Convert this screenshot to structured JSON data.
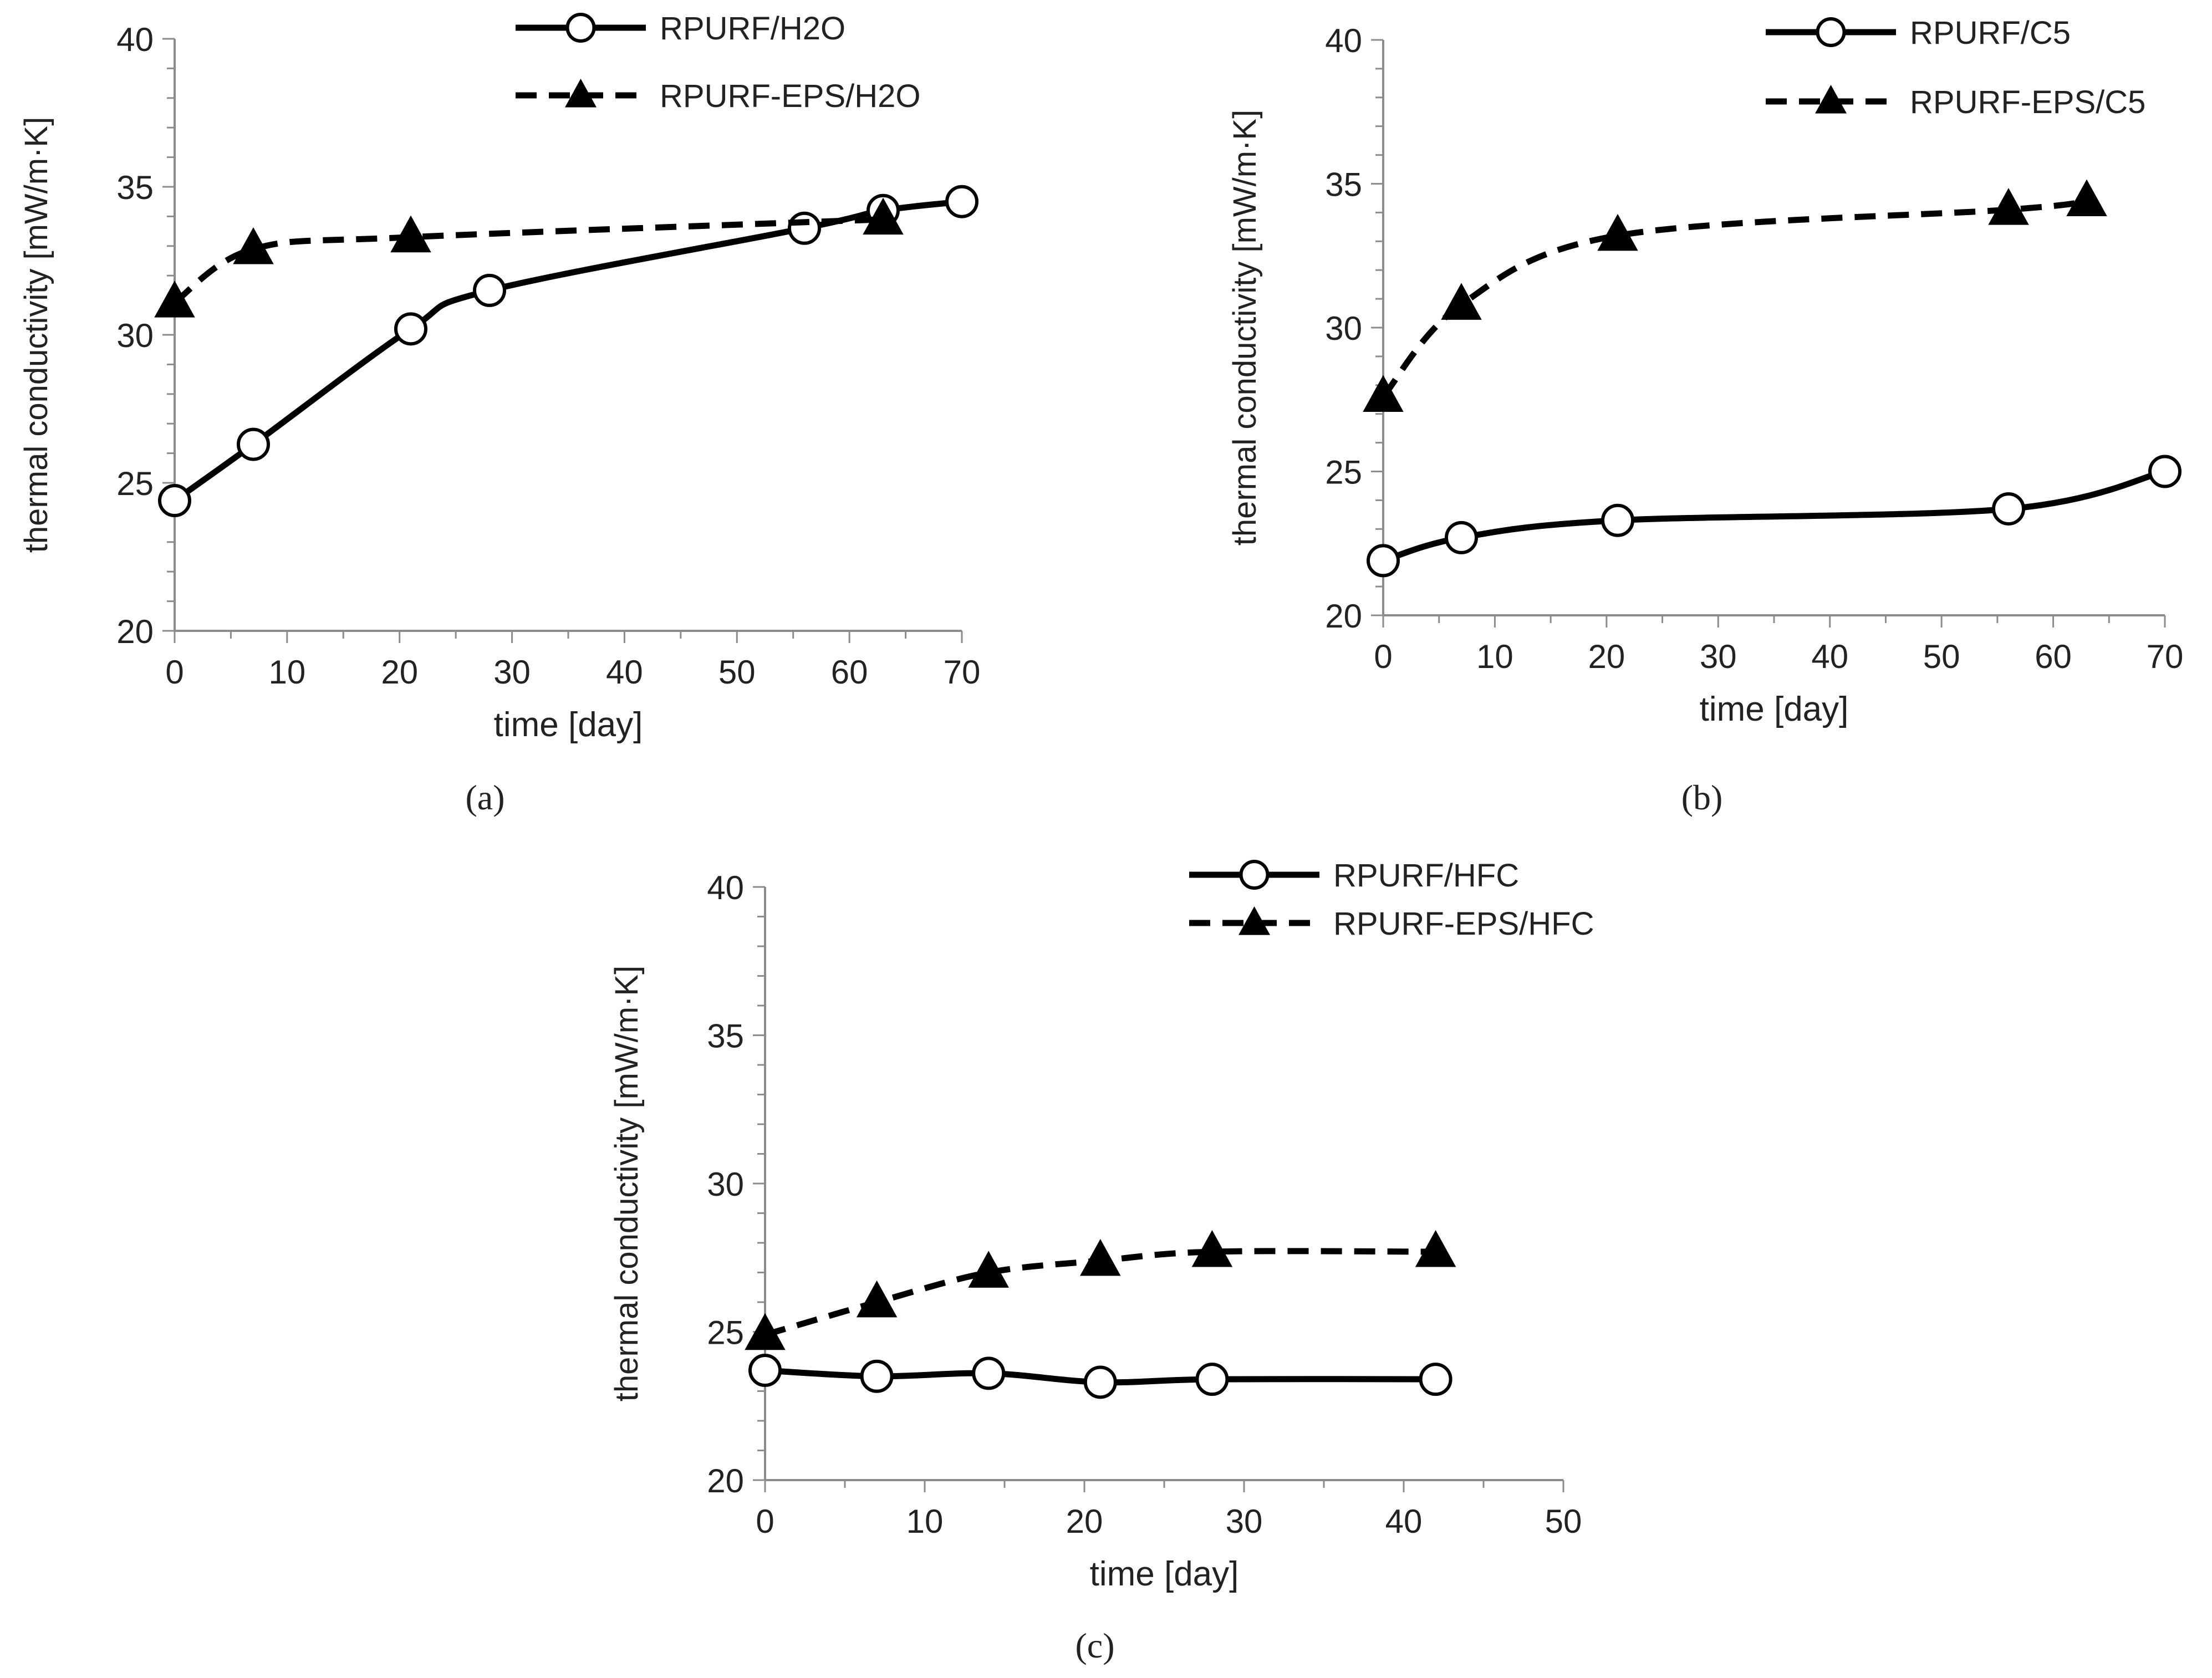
{
  "chart_data": [
    {
      "type": "line",
      "panel_label": "(a)",
      "xlabel": "time  [day]",
      "ylabel": "thermal conductivity [mW/m·K]",
      "xlim": [
        0,
        70
      ],
      "ylim": [
        20,
        40
      ],
      "xticks": [
        0,
        10,
        20,
        30,
        40,
        50,
        60,
        70
      ],
      "yticks": [
        20,
        25,
        30,
        35,
        40
      ],
      "legend_position": "top-center",
      "series": [
        {
          "name": "RPURF/H2O",
          "style": "solid",
          "marker": "open-circle",
          "x": [
            0,
            7,
            21,
            28,
            56,
            63,
            70
          ],
          "y": [
            24.4,
            26.3,
            30.2,
            31.5,
            33.6,
            34.2,
            34.5
          ]
        },
        {
          "name": "RPURF-EPS/H2O",
          "style": "dashed",
          "marker": "filled-triangle",
          "x": [
            0,
            7,
            21,
            63
          ],
          "y": [
            31.1,
            32.9,
            33.3,
            33.9
          ]
        }
      ]
    },
    {
      "type": "line",
      "panel_label": "(b)",
      "xlabel": "time  [day]",
      "ylabel": "thermal conductivity [mW/m·K]",
      "xlim": [
        0,
        70
      ],
      "ylim": [
        20,
        40
      ],
      "xticks": [
        0,
        10,
        20,
        30,
        40,
        50,
        60,
        70
      ],
      "yticks": [
        20,
        25,
        30,
        35,
        40
      ],
      "legend_position": "top-right",
      "series": [
        {
          "name": "RPURF/C5",
          "style": "solid",
          "marker": "open-circle",
          "x": [
            0,
            7,
            21,
            56,
            70
          ],
          "y": [
            21.9,
            22.7,
            23.3,
            23.7,
            25.0
          ]
        },
        {
          "name": "RPURF-EPS/C5",
          "style": "dashed",
          "marker": "filled-triangle",
          "x": [
            0,
            7,
            21,
            56,
            63
          ],
          "y": [
            27.6,
            30.8,
            33.2,
            34.1,
            34.4
          ]
        }
      ]
    },
    {
      "type": "line",
      "panel_label": "(c)",
      "xlabel": "time  [day]",
      "ylabel": "thermal conductivity [mW/m·K]",
      "xlim": [
        0,
        50
      ],
      "ylim": [
        20,
        40
      ],
      "xticks": [
        0,
        10,
        20,
        30,
        40,
        50
      ],
      "yticks": [
        20,
        25,
        30,
        35,
        40
      ],
      "legend_position": "top-right",
      "series": [
        {
          "name": "RPURF/HFC",
          "style": "solid",
          "marker": "open-circle",
          "x": [
            0,
            7,
            14,
            21,
            28,
            42
          ],
          "y": [
            23.7,
            23.5,
            23.6,
            23.3,
            23.4,
            23.4
          ]
        },
        {
          "name": "RPURF-EPS/HFC",
          "style": "dashed",
          "marker": "filled-triangle",
          "x": [
            0,
            7,
            14,
            21,
            28,
            42
          ],
          "y": [
            24.9,
            26.0,
            27.0,
            27.4,
            27.7,
            27.7
          ]
        }
      ]
    }
  ]
}
